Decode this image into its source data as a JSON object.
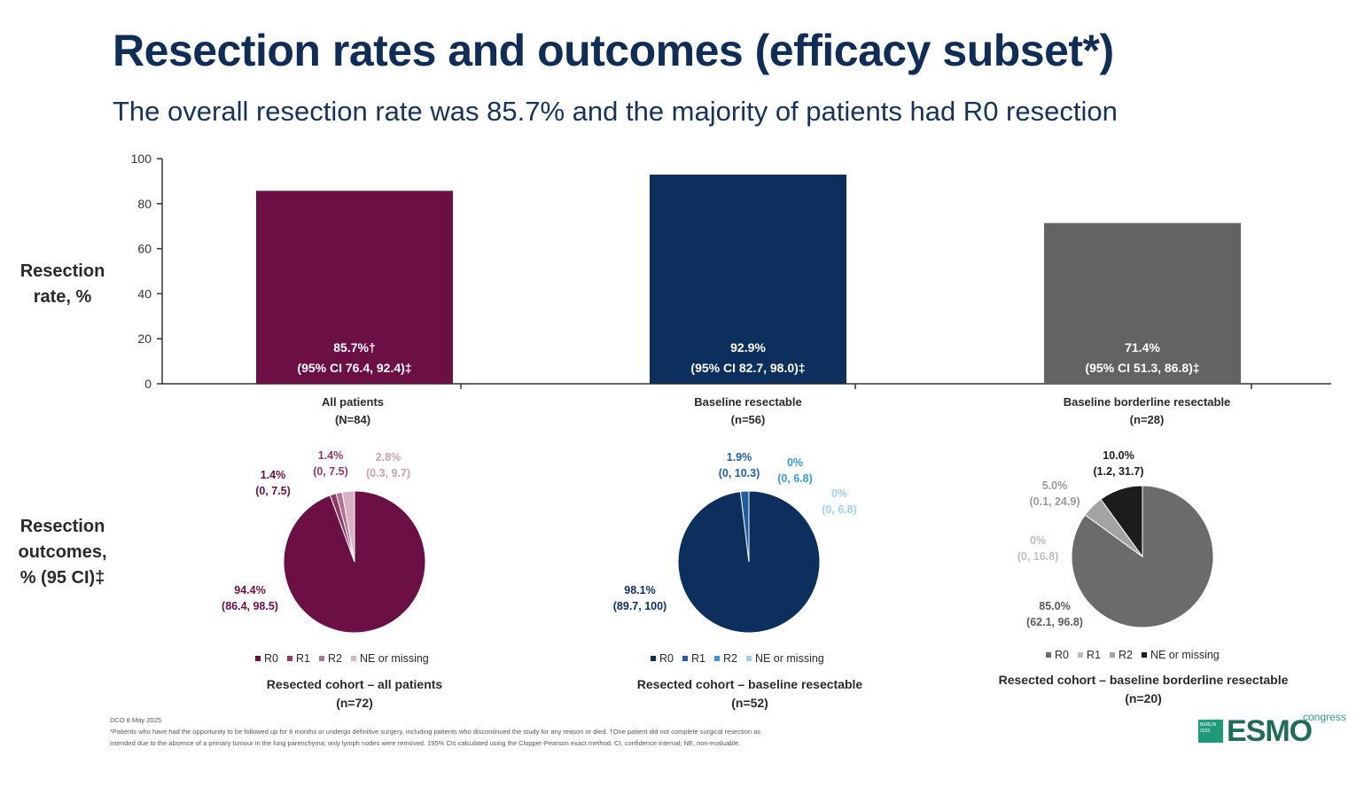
{
  "title": "Resection rates and outcomes (efficacy subset*)",
  "subtitle": "The overall resection rate was 85.7% and the majority of patients had R0 resection",
  "y_axis_label_line1": "Resection",
  "y_axis_label_line2": "rate, %",
  "outcomes_label_line1": "Resection",
  "outcomes_label_line2": "outcomes,",
  "outcomes_label_line3": "% (95 CI)‡",
  "colors": {
    "title": "#0f2d57",
    "all_patients": "#6b0f45",
    "resectable": "#0c2f5e",
    "borderline": "#636363"
  },
  "chart_data": [
    {
      "type": "bar",
      "categories": [
        "All patients",
        "Baseline resectable",
        "Baseline borderline resectable"
      ],
      "category_n": [
        "(N=84)",
        "(n=56)",
        "(n=28)"
      ],
      "values": [
        85.7,
        92.9,
        71.4
      ],
      "value_labels": [
        "85.7%†",
        "92.9%",
        "71.4%"
      ],
      "ci_labels": [
        "(95% CI 76.4, 92.4)‡",
        "(95% CI 82.7, 98.0)‡",
        "(95% CI 51.3, 86.8)‡"
      ],
      "ylim": [
        0,
        100
      ],
      "yticks": [
        0,
        20,
        40,
        60,
        80,
        100
      ],
      "ylabel": "Resection rate, %"
    },
    {
      "type": "pie",
      "title": "Resected cohort – all patients",
      "n": "(n=72)",
      "legend": [
        "R0",
        "R1",
        "R2",
        "NE or missing"
      ],
      "slice_colors": [
        "#6b0f45",
        "#8e3a66",
        "#b5728f",
        "#d8b2c4"
      ],
      "values": [
        94.4,
        1.4,
        1.4,
        2.8
      ],
      "labels": [
        {
          "pct": "94.4%",
          "ci": "(86.4, 98.5)"
        },
        {
          "pct": "1.4%",
          "ci": "(0, 7.5)"
        },
        {
          "pct": "1.4%",
          "ci": "(0, 7.5)"
        },
        {
          "pct": "2.8%",
          "ci": "(0.3, 9.7)"
        }
      ]
    },
    {
      "type": "pie",
      "title": "Resected cohort – baseline resectable",
      "n": "(n=52)",
      "legend": [
        "R0",
        "R1",
        "R2",
        "NE or missing"
      ],
      "slice_colors": [
        "#0c2f5e",
        "#1f5fa0",
        "#3a97d4",
        "#9fd0ef"
      ],
      "values": [
        98.1,
        1.9,
        0,
        0
      ],
      "labels": [
        {
          "pct": "98.1%",
          "ci": "(89.7, 100)"
        },
        {
          "pct": "1.9%",
          "ci": "(0, 10.3)"
        },
        {
          "pct": "0%",
          "ci": "(0, 6.8)"
        },
        {
          "pct": "0%",
          "ci": "(0, 6.8)"
        }
      ]
    },
    {
      "type": "pie",
      "title": "Resected cohort – baseline borderline resectable",
      "n": "(n=20)",
      "legend": [
        "R0",
        "R1",
        "R2",
        "NE or missing"
      ],
      "slice_colors": [
        "#6b6b6b",
        "#bdbdbd",
        "#a3a3a3",
        "#1c1c1c"
      ],
      "values": [
        85.0,
        0,
        5.0,
        10.0
      ],
      "labels": [
        {
          "pct": "85.0%",
          "ci": "(62.1, 96.8)"
        },
        {
          "pct": "0%",
          "ci": "(0, 16.8)"
        },
        {
          "pct": "5.0%",
          "ci": "(0.1, 24.9)"
        },
        {
          "pct": "10.0%",
          "ci": "(1.2, 31.7)"
        }
      ]
    }
  ],
  "footnotes": {
    "dco": "DCO 8 May 2025",
    "line1": "*Patients who have had the opportunity to be followed up for 6 months or undergo definitive surgery, including patients who discontinued the study for any reason or died. †One patient did not complete surgical resection as",
    "line2": "intended due to the absence of a primary tumour in the lung parenchyma; only lymph nodes were removed. ‡95% CIs calculated using the Clopper-Pearson exact method. CI, confidence interval; NE, non-evaluable."
  },
  "logo": {
    "text": "ESMO",
    "sub": "congress",
    "badge": "BERLIN 2025"
  }
}
